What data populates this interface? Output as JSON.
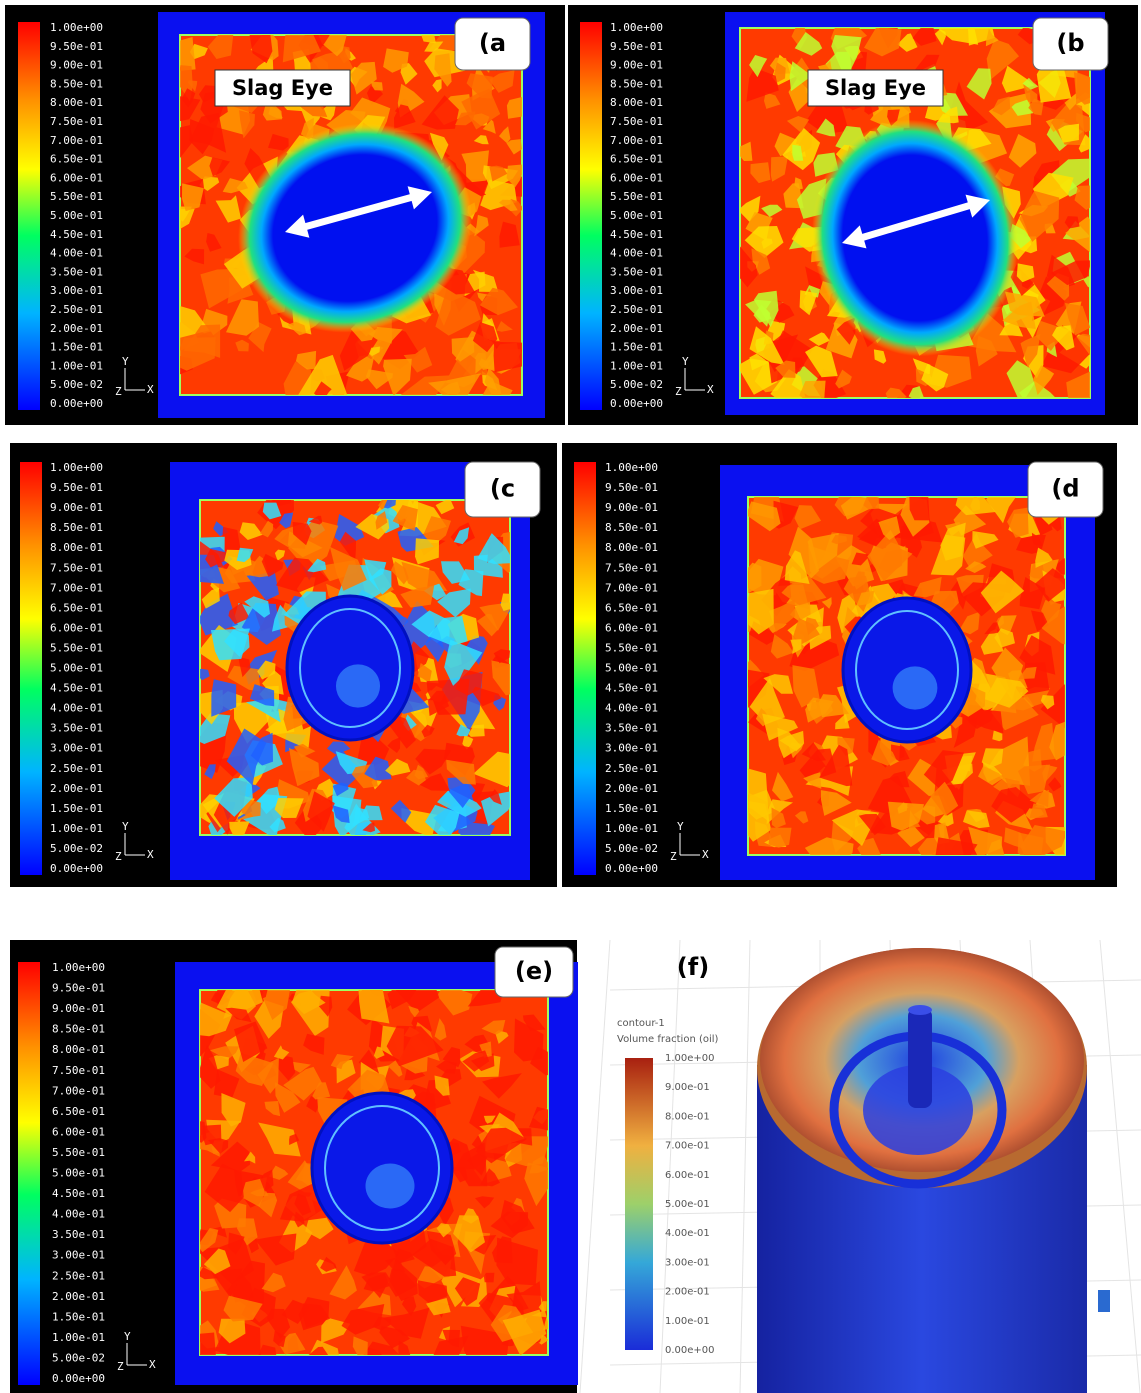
{
  "panels": [
    {
      "label": "(a",
      "annotation": "Slag Eye",
      "colorbar_ticks": [
        "1.00e+00",
        "9.50e-01",
        "9.00e-01",
        "8.50e-01",
        "8.00e-01",
        "7.50e-01",
        "7.00e-01",
        "6.50e-01",
        "6.00e-01",
        "5.50e-01",
        "5.00e-01",
        "4.50e-01",
        "4.00e-01",
        "3.50e-01",
        "3.00e-01",
        "2.50e-01",
        "2.00e-01",
        "1.50e-01",
        "1.00e-01",
        "5.00e-02",
        "0.00e+00"
      ]
    },
    {
      "label": "(b",
      "annotation": "Slag Eye",
      "colorbar_ticks": [
        "1.00e+00",
        "9.50e-01",
        "9.00e-01",
        "8.50e-01",
        "8.00e-01",
        "7.50e-01",
        "7.00e-01",
        "6.50e-01",
        "6.00e-01",
        "5.50e-01",
        "5.00e-01",
        "4.50e-01",
        "4.00e-01",
        "3.50e-01",
        "3.00e-01",
        "2.50e-01",
        "2.00e-01",
        "1.50e-01",
        "1.00e-01",
        "5.00e-02",
        "0.00e+00"
      ]
    },
    {
      "label": "(c",
      "colorbar_ticks": [
        "1.00e+00",
        "9.50e-01",
        "9.00e-01",
        "8.50e-01",
        "8.00e-01",
        "7.50e-01",
        "7.00e-01",
        "6.50e-01",
        "6.00e-01",
        "5.50e-01",
        "5.00e-01",
        "4.50e-01",
        "4.00e-01",
        "3.50e-01",
        "3.00e-01",
        "2.50e-01",
        "2.00e-01",
        "1.50e-01",
        "1.00e-01",
        "5.00e-02",
        "0.00e+00"
      ]
    },
    {
      "label": "(d",
      "colorbar_ticks": [
        "1.00e+00",
        "9.50e-01",
        "9.00e-01",
        "8.50e-01",
        "8.00e-01",
        "7.50e-01",
        "7.00e-01",
        "6.50e-01",
        "6.00e-01",
        "5.50e-01",
        "5.00e-01",
        "4.50e-01",
        "4.00e-01",
        "3.50e-01",
        "3.00e-01",
        "2.50e-01",
        "2.00e-01",
        "1.50e-01",
        "1.00e-01",
        "5.00e-02",
        "0.00e+00"
      ]
    },
    {
      "label": "(e)",
      "colorbar_ticks": [
        "1.00e+00",
        "9.50e-01",
        "9.00e-01",
        "8.50e-01",
        "8.00e-01",
        "7.50e-01",
        "7.00e-01",
        "6.50e-01",
        "6.00e-01",
        "5.50e-01",
        "5.00e-01",
        "4.50e-01",
        "4.00e-01",
        "3.50e-01",
        "3.00e-01",
        "2.50e-01",
        "2.00e-01",
        "1.50e-01",
        "1.00e-01",
        "5.00e-02",
        "0.00e+00"
      ]
    },
    {
      "label": "(f)",
      "legend_title": "contour-1",
      "legend_subtitle": "Volume fraction (oil)",
      "colorbar_ticks": [
        "1.00e+00",
        "9.00e-01",
        "8.00e-01",
        "7.00e-01",
        "6.00e-01",
        "5.00e-01",
        "4.00e-01",
        "3.00e-01",
        "2.00e-01",
        "1.00e-01",
        "0.00e+00"
      ]
    }
  ],
  "triad": {
    "y": "Y",
    "x": "X",
    "z": "Z"
  }
}
